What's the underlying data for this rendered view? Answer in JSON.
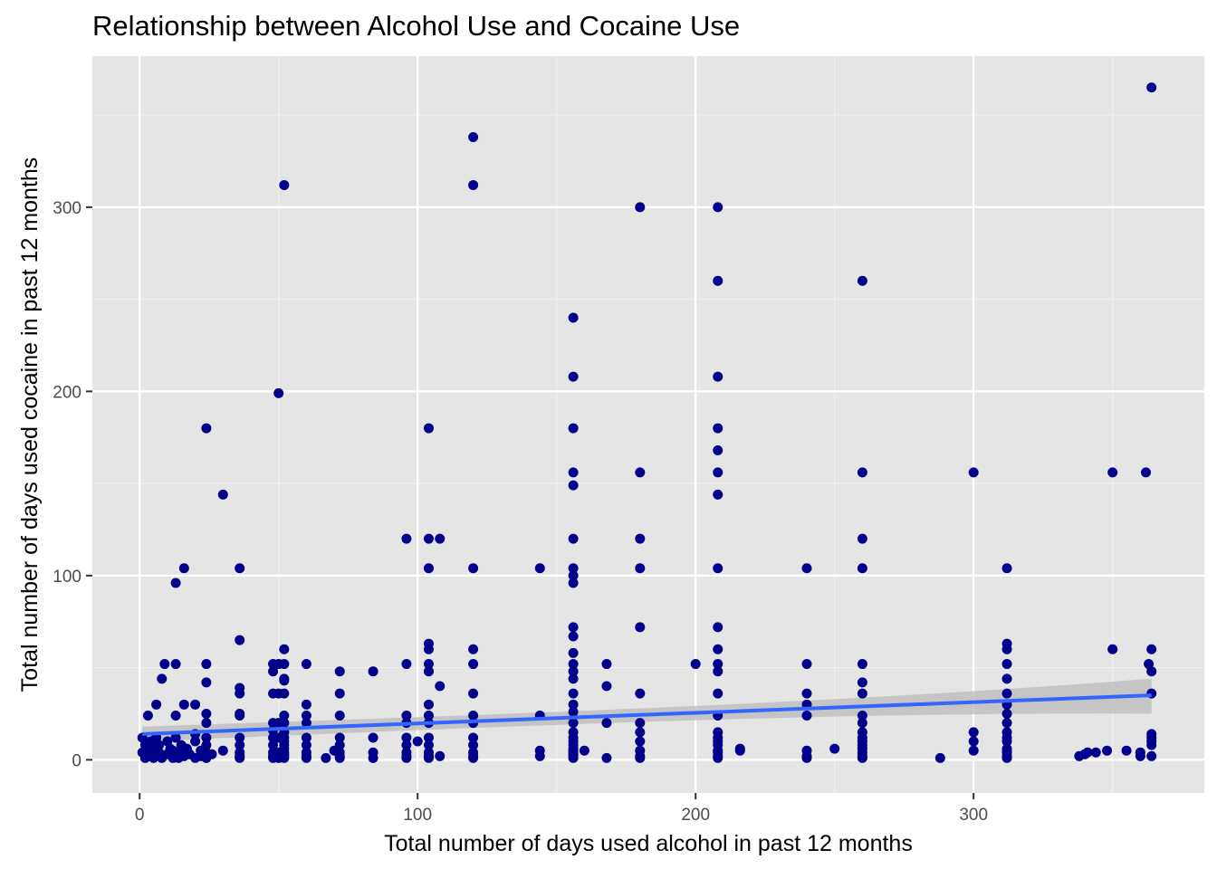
{
  "chart_data": {
    "type": "scatter",
    "title": "Relationship between Alcohol Use and Cocaine Use",
    "xlabel": "Total number of days used alcohol in past 12 months",
    "ylabel": "Total number of days used cocaine in past 12 months",
    "xlim": [
      -17,
      383
    ],
    "ylim": [
      -18,
      382
    ],
    "x_ticks": [
      0,
      100,
      200,
      300
    ],
    "y_ticks": [
      0,
      100,
      200,
      300
    ],
    "grid": true,
    "panel_background": "#e5e5e5",
    "point_color": "#00008b",
    "fit_line_color": "#3366ff",
    "confidence_band_color": "#bdbdbd",
    "fit_line": {
      "x": [
        1,
        364
      ],
      "y": [
        14,
        35
      ],
      "band_lower": [
        10,
        25
      ],
      "band_upper": [
        18,
        44
      ]
    },
    "points": [
      [
        1,
        12
      ],
      [
        1,
        4
      ],
      [
        2,
        8
      ],
      [
        2,
        1
      ],
      [
        3,
        2
      ],
      [
        3,
        5
      ],
      [
        3,
        24
      ],
      [
        4,
        10
      ],
      [
        4,
        3
      ],
      [
        5,
        1
      ],
      [
        5,
        6
      ],
      [
        6,
        30
      ],
      [
        6,
        12
      ],
      [
        6,
        2
      ],
      [
        7,
        8
      ],
      [
        7,
        4
      ],
      [
        8,
        44
      ],
      [
        8,
        1
      ],
      [
        9,
        52
      ],
      [
        10,
        10
      ],
      [
        10,
        3
      ],
      [
        11,
        6
      ],
      [
        12,
        1
      ],
      [
        12,
        5
      ],
      [
        13,
        96
      ],
      [
        13,
        24
      ],
      [
        13,
        52
      ],
      [
        13,
        12
      ],
      [
        14,
        1
      ],
      [
        14,
        4
      ],
      [
        15,
        8
      ],
      [
        16,
        104
      ],
      [
        16,
        30
      ],
      [
        16,
        2
      ],
      [
        17,
        6
      ],
      [
        18,
        3
      ],
      [
        20,
        30
      ],
      [
        20,
        14
      ],
      [
        20,
        1
      ],
      [
        20,
        10
      ],
      [
        22,
        5
      ],
      [
        22,
        2
      ],
      [
        24,
        180
      ],
      [
        24,
        52
      ],
      [
        24,
        42
      ],
      [
        24,
        25
      ],
      [
        24,
        20
      ],
      [
        24,
        12
      ],
      [
        24,
        8
      ],
      [
        24,
        4
      ],
      [
        24,
        2
      ],
      [
        24,
        1
      ],
      [
        26,
        3
      ],
      [
        30,
        144
      ],
      [
        30,
        5
      ],
      [
        36,
        104
      ],
      [
        36,
        65
      ],
      [
        36,
        39
      ],
      [
        36,
        36
      ],
      [
        36,
        25
      ],
      [
        36,
        24
      ],
      [
        36,
        12
      ],
      [
        36,
        8
      ],
      [
        36,
        4
      ],
      [
        36,
        2
      ],
      [
        36,
        1
      ],
      [
        48,
        52
      ],
      [
        48,
        48
      ],
      [
        48,
        36
      ],
      [
        48,
        20
      ],
      [
        48,
        16
      ],
      [
        48,
        12
      ],
      [
        48,
        8
      ],
      [
        48,
        4
      ],
      [
        48,
        2
      ],
      [
        48,
        1
      ],
      [
        50,
        199
      ],
      [
        50,
        52
      ],
      [
        50,
        36
      ],
      [
        50,
        20
      ],
      [
        50,
        12
      ],
      [
        50,
        4
      ],
      [
        50,
        1
      ],
      [
        52,
        312
      ],
      [
        52,
        60
      ],
      [
        52,
        52
      ],
      [
        52,
        44
      ],
      [
        52,
        43
      ],
      [
        52,
        36
      ],
      [
        52,
        24
      ],
      [
        52,
        20
      ],
      [
        52,
        15
      ],
      [
        52,
        12
      ],
      [
        52,
        10
      ],
      [
        52,
        8
      ],
      [
        52,
        6
      ],
      [
        52,
        4
      ],
      [
        52,
        3
      ],
      [
        52,
        2
      ],
      [
        52,
        1
      ],
      [
        60,
        52
      ],
      [
        60,
        30
      ],
      [
        60,
        24
      ],
      [
        60,
        20
      ],
      [
        60,
        12
      ],
      [
        60,
        8
      ],
      [
        60,
        4
      ],
      [
        60,
        2
      ],
      [
        60,
        1
      ],
      [
        67,
        1
      ],
      [
        70,
        5
      ],
      [
        72,
        48
      ],
      [
        72,
        36
      ],
      [
        72,
        24
      ],
      [
        72,
        12
      ],
      [
        72,
        8
      ],
      [
        72,
        4
      ],
      [
        72,
        2
      ],
      [
        72,
        1
      ],
      [
        84,
        48
      ],
      [
        84,
        12
      ],
      [
        84,
        4
      ],
      [
        84,
        1
      ],
      [
        96,
        120
      ],
      [
        96,
        52
      ],
      [
        96,
        24
      ],
      [
        96,
        20
      ],
      [
        96,
        12
      ],
      [
        96,
        8
      ],
      [
        96,
        4
      ],
      [
        96,
        2
      ],
      [
        96,
        1
      ],
      [
        100,
        10
      ],
      [
        104,
        180
      ],
      [
        104,
        120
      ],
      [
        104,
        104
      ],
      [
        104,
        63
      ],
      [
        104,
        60
      ],
      [
        104,
        52
      ],
      [
        104,
        48
      ],
      [
        104,
        30
      ],
      [
        104,
        24
      ],
      [
        104,
        20
      ],
      [
        104,
        12
      ],
      [
        104,
        8
      ],
      [
        104,
        4
      ],
      [
        104,
        2
      ],
      [
        104,
        1
      ],
      [
        108,
        120
      ],
      [
        108,
        40
      ],
      [
        108,
        2
      ],
      [
        120,
        338
      ],
      [
        120,
        312
      ],
      [
        120,
        104
      ],
      [
        120,
        60
      ],
      [
        120,
        52
      ],
      [
        120,
        36
      ],
      [
        120,
        24
      ],
      [
        120,
        20
      ],
      [
        120,
        12
      ],
      [
        120,
        8
      ],
      [
        120,
        4
      ],
      [
        120,
        2
      ],
      [
        120,
        1
      ],
      [
        144,
        104
      ],
      [
        144,
        24
      ],
      [
        144,
        5
      ],
      [
        144,
        2
      ],
      [
        156,
        240
      ],
      [
        156,
        208
      ],
      [
        156,
        180
      ],
      [
        156,
        156
      ],
      [
        156,
        149
      ],
      [
        156,
        120
      ],
      [
        156,
        104
      ],
      [
        156,
        100
      ],
      [
        156,
        96
      ],
      [
        156,
        72
      ],
      [
        156,
        67
      ],
      [
        156,
        58
      ],
      [
        156,
        52
      ],
      [
        156,
        48
      ],
      [
        156,
        44
      ],
      [
        156,
        36
      ],
      [
        156,
        30
      ],
      [
        156,
        26
      ],
      [
        156,
        20
      ],
      [
        156,
        15
      ],
      [
        156,
        12
      ],
      [
        156,
        10
      ],
      [
        156,
        8
      ],
      [
        156,
        6
      ],
      [
        156,
        5
      ],
      [
        156,
        4
      ],
      [
        156,
        3
      ],
      [
        156,
        2
      ],
      [
        156,
        1
      ],
      [
        160,
        5
      ],
      [
        168,
        52
      ],
      [
        168,
        40
      ],
      [
        168,
        20
      ],
      [
        168,
        1
      ],
      [
        180,
        300
      ],
      [
        180,
        156
      ],
      [
        180,
        120
      ],
      [
        180,
        104
      ],
      [
        180,
        72
      ],
      [
        180,
        36
      ],
      [
        180,
        20
      ],
      [
        180,
        15
      ],
      [
        180,
        10
      ],
      [
        180,
        5
      ],
      [
        180,
        2
      ],
      [
        180,
        1
      ],
      [
        200,
        52
      ],
      [
        208,
        300
      ],
      [
        208,
        260
      ],
      [
        208,
        208
      ],
      [
        208,
        180
      ],
      [
        208,
        168
      ],
      [
        208,
        156
      ],
      [
        208,
        144
      ],
      [
        208,
        104
      ],
      [
        208,
        72
      ],
      [
        208,
        60
      ],
      [
        208,
        52
      ],
      [
        208,
        48
      ],
      [
        208,
        36
      ],
      [
        208,
        24
      ],
      [
        208,
        15
      ],
      [
        208,
        12
      ],
      [
        208,
        10
      ],
      [
        208,
        8
      ],
      [
        208,
        5
      ],
      [
        208,
        4
      ],
      [
        208,
        2
      ],
      [
        208,
        1
      ],
      [
        216,
        6
      ],
      [
        216,
        5
      ],
      [
        240,
        104
      ],
      [
        240,
        52
      ],
      [
        240,
        36
      ],
      [
        240,
        30
      ],
      [
        240,
        24
      ],
      [
        240,
        5
      ],
      [
        240,
        2
      ],
      [
        240,
        1
      ],
      [
        250,
        6
      ],
      [
        260,
        260
      ],
      [
        260,
        156
      ],
      [
        260,
        120
      ],
      [
        260,
        104
      ],
      [
        260,
        52
      ],
      [
        260,
        42
      ],
      [
        260,
        36
      ],
      [
        260,
        24
      ],
      [
        260,
        20
      ],
      [
        260,
        15
      ],
      [
        260,
        12
      ],
      [
        260,
        10
      ],
      [
        260,
        8
      ],
      [
        260,
        6
      ],
      [
        260,
        4
      ],
      [
        260,
        2
      ],
      [
        260,
        1
      ],
      [
        288,
        1
      ],
      [
        300,
        156
      ],
      [
        300,
        15
      ],
      [
        300,
        10
      ],
      [
        300,
        5
      ],
      [
        312,
        104
      ],
      [
        312,
        63
      ],
      [
        312,
        60
      ],
      [
        312,
        52
      ],
      [
        312,
        44
      ],
      [
        312,
        36
      ],
      [
        312,
        30
      ],
      [
        312,
        25
      ],
      [
        312,
        20
      ],
      [
        312,
        15
      ],
      [
        312,
        12
      ],
      [
        312,
        10
      ],
      [
        312,
        6
      ],
      [
        312,
        5
      ],
      [
        312,
        4
      ],
      [
        312,
        2
      ],
      [
        312,
        1
      ],
      [
        338,
        2
      ],
      [
        340,
        3
      ],
      [
        341,
        4
      ],
      [
        344,
        4
      ],
      [
        348,
        5
      ],
      [
        350,
        156
      ],
      [
        350,
        60
      ],
      [
        355,
        5
      ],
      [
        360,
        4
      ],
      [
        360,
        2
      ],
      [
        362,
        156
      ],
      [
        363,
        52
      ],
      [
        364,
        365
      ],
      [
        364,
        60
      ],
      [
        364,
        48
      ],
      [
        364,
        36
      ],
      [
        364,
        14
      ],
      [
        364,
        12
      ],
      [
        364,
        10
      ],
      [
        364,
        8
      ],
      [
        364,
        2
      ]
    ]
  }
}
